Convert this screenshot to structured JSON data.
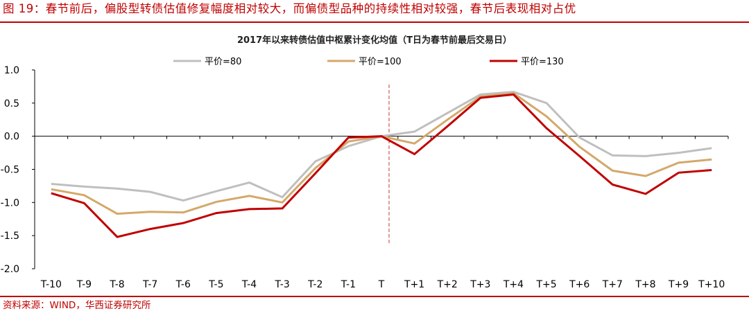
{
  "figure": {
    "title": "图 19：春节前后，偏股型转债估值修复幅度相对较大，而偏债型品种的持续性相对较强，春节后表现相对占优",
    "source": "资料来源：WIND，华西证券研究所"
  },
  "colors": {
    "accent": "#c00000",
    "vline": "#c0392b"
  },
  "chart_data": {
    "type": "line",
    "title": "2017年以来转债估值中枢累计变化均值（T日为春节前最后交易日）",
    "xlabel": "",
    "ylabel": "",
    "categories": [
      "T-10",
      "T-9",
      "T-8",
      "T-7",
      "T-6",
      "T-5",
      "T-4",
      "T-3",
      "T-2",
      "T-1",
      "T",
      "T+1",
      "T+2",
      "T+3",
      "T+4",
      "T+5",
      "T+6",
      "T+7",
      "T+8",
      "T+9",
      "T+10"
    ],
    "ylim": [
      -2.0,
      1.0
    ],
    "yticks": [
      -2.0,
      -1.5,
      -1.0,
      -0.5,
      0.0,
      0.5,
      1.0
    ],
    "ytick_labels": [
      "-2.0",
      "-1.5",
      "-1.0",
      "-0.5",
      "0.0",
      "0.5",
      "1.0"
    ],
    "grid": false,
    "legend_position": "top",
    "reference_line": {
      "category": "T",
      "style": "dashed"
    },
    "series": [
      {
        "name": "平价=80",
        "color": "#bfbfbf",
        "values": [
          -0.72,
          -0.76,
          -0.79,
          -0.84,
          -0.97,
          -0.83,
          -0.7,
          -0.92,
          -0.38,
          -0.15,
          0.0,
          0.07,
          0.35,
          0.63,
          0.67,
          0.5,
          -0.02,
          -0.29,
          -0.3,
          -0.25,
          -0.18
        ]
      },
      {
        "name": "平价=100",
        "color": "#d4a86a",
        "values": [
          -0.8,
          -0.89,
          -1.17,
          -1.14,
          -1.15,
          -0.99,
          -0.9,
          -1.0,
          -0.48,
          -0.08,
          0.0,
          -0.11,
          0.25,
          0.6,
          0.65,
          0.3,
          -0.16,
          -0.52,
          -0.6,
          -0.4,
          -0.35
        ]
      },
      {
        "name": "平价=130",
        "color": "#c00000",
        "values": [
          -0.86,
          -1.01,
          -1.52,
          -1.4,
          -1.31,
          -1.16,
          -1.1,
          -1.09,
          -0.56,
          -0.02,
          0.0,
          -0.27,
          0.15,
          0.58,
          0.63,
          0.12,
          -0.3,
          -0.73,
          -0.87,
          -0.55,
          -0.51
        ]
      }
    ]
  }
}
